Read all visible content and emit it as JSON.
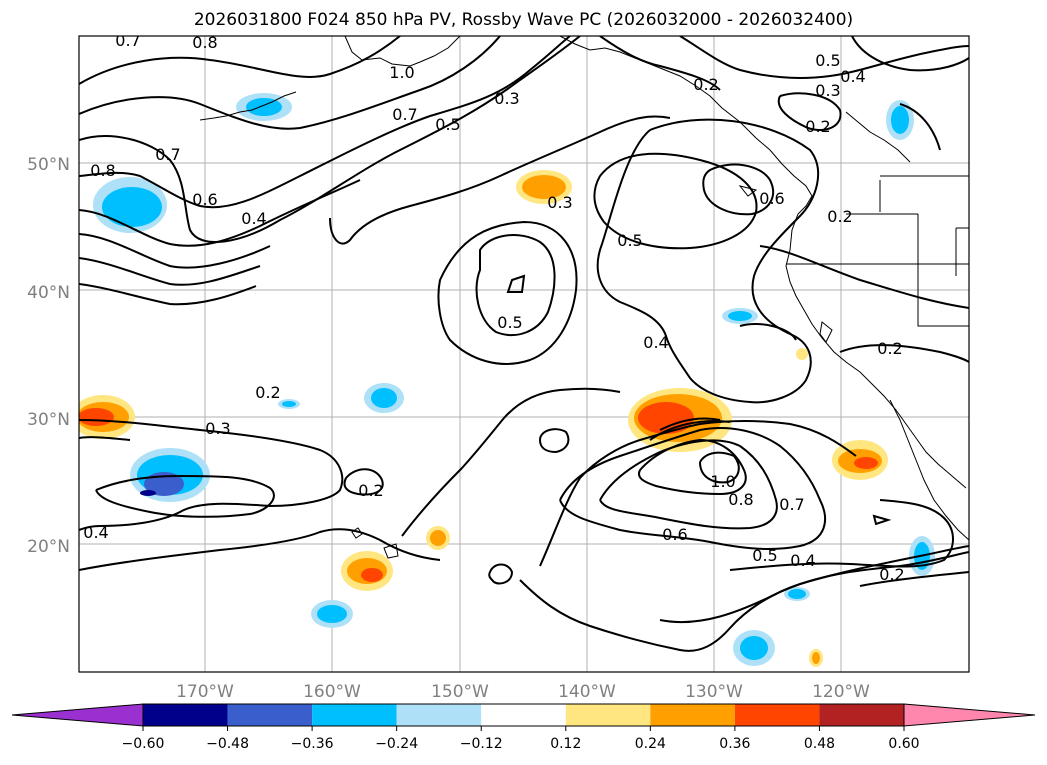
{
  "title": "2026031800 F024 850 hPa PV, Rossby Wave PC (2026032000 - 2026032400)",
  "map": {
    "lat_labels": [
      "50°N",
      "40°N",
      "30°N",
      "20°N"
    ],
    "lon_labels": [
      "170°W",
      "160°W",
      "150°W",
      "140°W",
      "130°W",
      "120°W"
    ],
    "gridline_color": "#b0b0b0",
    "axis_label_color": "#808080"
  },
  "contour_labels": [
    "0.7",
    "0.8",
    "1.0",
    "0.5",
    "0.4",
    "0.3",
    "0.2",
    "0.7",
    "0.5",
    "0.3",
    "0.2",
    "0.7",
    "0.8",
    "0.6",
    "0.4",
    "0.3",
    "0.5",
    "0.5",
    "0.6",
    "0.2",
    "0.4",
    "0.2",
    "0.2",
    "0.3",
    "0.2",
    "0.4",
    "0.6",
    "0.8",
    "1.0",
    "0.7",
    "0.5",
    "0.4",
    "0.2"
  ],
  "colorbar": {
    "ticks": [
      "−0.60",
      "−0.48",
      "−0.36",
      "−0.24",
      "−0.12",
      "0.12",
      "0.24",
      "0.36",
      "0.48",
      "0.60"
    ],
    "colors": [
      "#9b30d0",
      "#00008b",
      "#3a5fcd",
      "#00bfff",
      "#aee1f8",
      "#ffffff",
      "#ffe680",
      "#ffa000",
      "#ff4500",
      "#b22222",
      "#ff86ad"
    ]
  }
}
